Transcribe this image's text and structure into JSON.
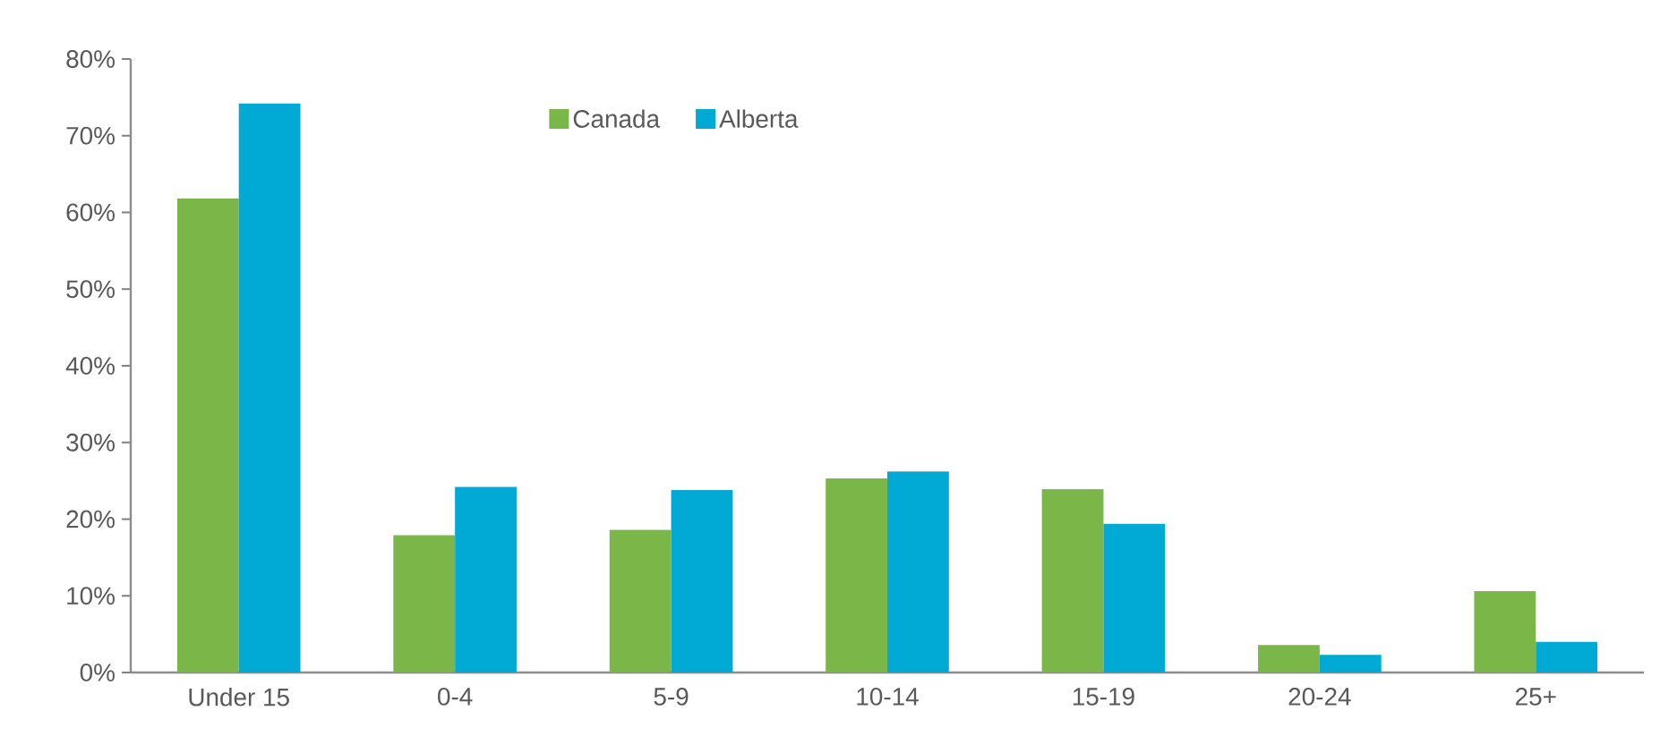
{
  "chart_data": {
    "type": "bar",
    "categories": [
      "Under 15",
      "0-4",
      "5-9",
      "10-14",
      "15-19",
      "20-24",
      "25+"
    ],
    "series": [
      {
        "name": "Canada",
        "color": "#7ab648",
        "values": [
          61.8,
          17.9,
          18.6,
          25.3,
          23.9,
          3.6,
          10.6
        ]
      },
      {
        "name": "Alberta",
        "color": "#00aad4",
        "values": [
          74.2,
          24.2,
          23.8,
          26.2,
          19.4,
          2.3,
          4.0
        ]
      }
    ],
    "ylim": [
      0,
      80
    ],
    "yticks": [
      {
        "value": 0,
        "label": "0%"
      },
      {
        "value": 10,
        "label": "10%"
      },
      {
        "value": 20,
        "label": "20%"
      },
      {
        "value": 30,
        "label": "30%"
      },
      {
        "value": 40,
        "label": "40%"
      },
      {
        "value": 50,
        "label": "50%"
      },
      {
        "value": 60,
        "label": "60%"
      },
      {
        "value": 70,
        "label": "70%"
      },
      {
        "value": 80,
        "label": "80%"
      }
    ],
    "grid": false,
    "legend": "top"
  }
}
